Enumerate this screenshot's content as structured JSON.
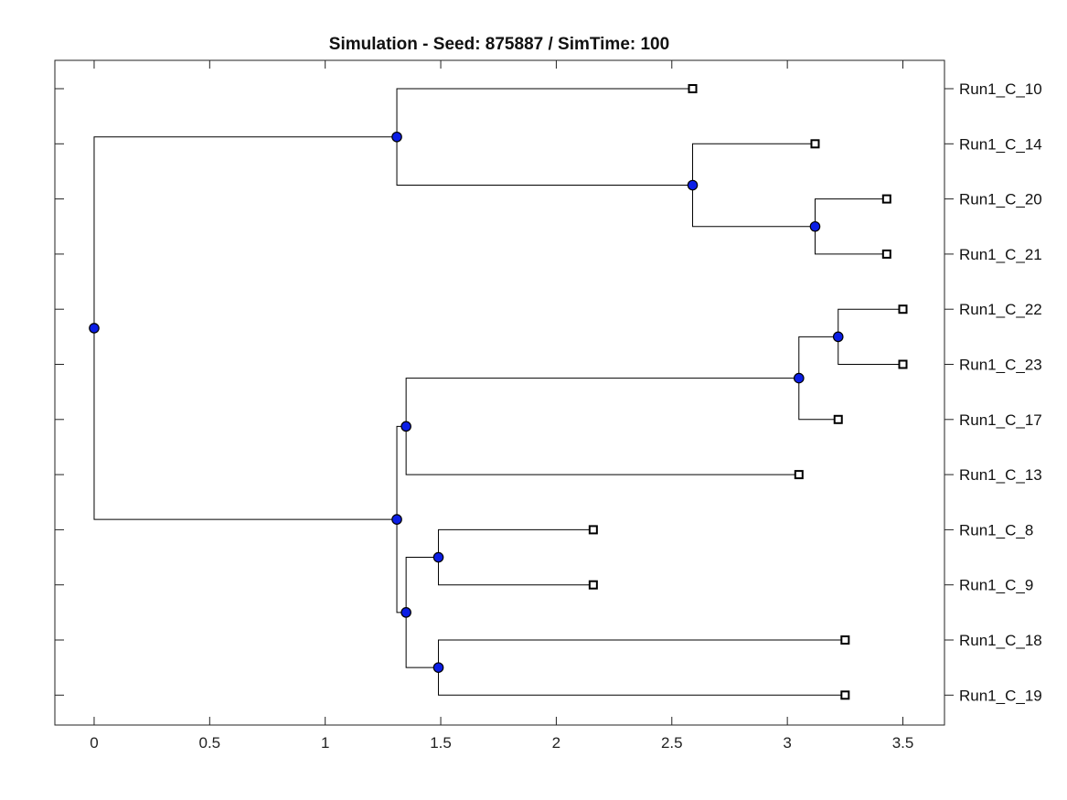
{
  "chart_data": {
    "type": "tree",
    "title": "Simulation - Seed: 875887 / SimTime: 100",
    "xlim": [
      -0.17,
      3.68
    ],
    "x_ticks": [
      0,
      0.5,
      1,
      1.5,
      2,
      2.5,
      3,
      3.5
    ],
    "x_tick_labels": [
      "0",
      "0.5",
      "1",
      "1.5",
      "2",
      "2.5",
      "3",
      "3.5"
    ],
    "leaf_order": [
      "Run1_C_10",
      "Run1_C_14",
      "Run1_C_20",
      "Run1_C_21",
      "Run1_C_22",
      "Run1_C_23",
      "Run1_C_17",
      "Run1_C_13",
      "Run1_C_8",
      "Run1_C_9",
      "Run1_C_18",
      "Run1_C_19"
    ],
    "leaves": [
      {
        "name": "Run1_C_10",
        "x": 2.59
      },
      {
        "name": "Run1_C_14",
        "x": 3.12
      },
      {
        "name": "Run1_C_20",
        "x": 3.43
      },
      {
        "name": "Run1_C_21",
        "x": 3.43
      },
      {
        "name": "Run1_C_22",
        "x": 3.5
      },
      {
        "name": "Run1_C_23",
        "x": 3.5
      },
      {
        "name": "Run1_C_17",
        "x": 3.22
      },
      {
        "name": "Run1_C_13",
        "x": 3.05
      },
      {
        "name": "Run1_C_8",
        "x": 2.16
      },
      {
        "name": "Run1_C_9",
        "x": 2.16
      },
      {
        "name": "Run1_C_18",
        "x": 3.25
      },
      {
        "name": "Run1_C_19",
        "x": 3.25
      }
    ],
    "internal_nodes": [
      {
        "id": "root",
        "x": 0.0,
        "children": [
          "nA",
          "nG"
        ]
      },
      {
        "id": "nA",
        "x": 1.31,
        "children": [
          "Run1_C_10",
          "nB"
        ]
      },
      {
        "id": "nB",
        "x": 2.59,
        "children": [
          "Run1_C_14",
          "nC"
        ]
      },
      {
        "id": "nC",
        "x": 3.12,
        "children": [
          "Run1_C_20",
          "Run1_C_21"
        ]
      },
      {
        "id": "nG",
        "x": 1.31,
        "children": [
          "nF",
          "nJ"
        ]
      },
      {
        "id": "nF",
        "x": 1.35,
        "children": [
          "nE",
          "Run1_C_13"
        ]
      },
      {
        "id": "nE",
        "x": 3.05,
        "children": [
          "nD",
          "Run1_C_17"
        ]
      },
      {
        "id": "nD",
        "x": 3.22,
        "children": [
          "Run1_C_22",
          "Run1_C_23"
        ]
      },
      {
        "id": "nJ",
        "x": 1.35,
        "children": [
          "nH",
          "nI"
        ]
      },
      {
        "id": "nH",
        "x": 1.49,
        "children": [
          "Run1_C_8",
          "Run1_C_9"
        ]
      },
      {
        "id": "nI",
        "x": 1.49,
        "children": [
          "Run1_C_18",
          "Run1_C_19"
        ]
      }
    ],
    "colors": {
      "node_fill": "#0b1ee6",
      "leaf_fill": "#ffffff",
      "edge": "#000000"
    },
    "grid": false
  }
}
